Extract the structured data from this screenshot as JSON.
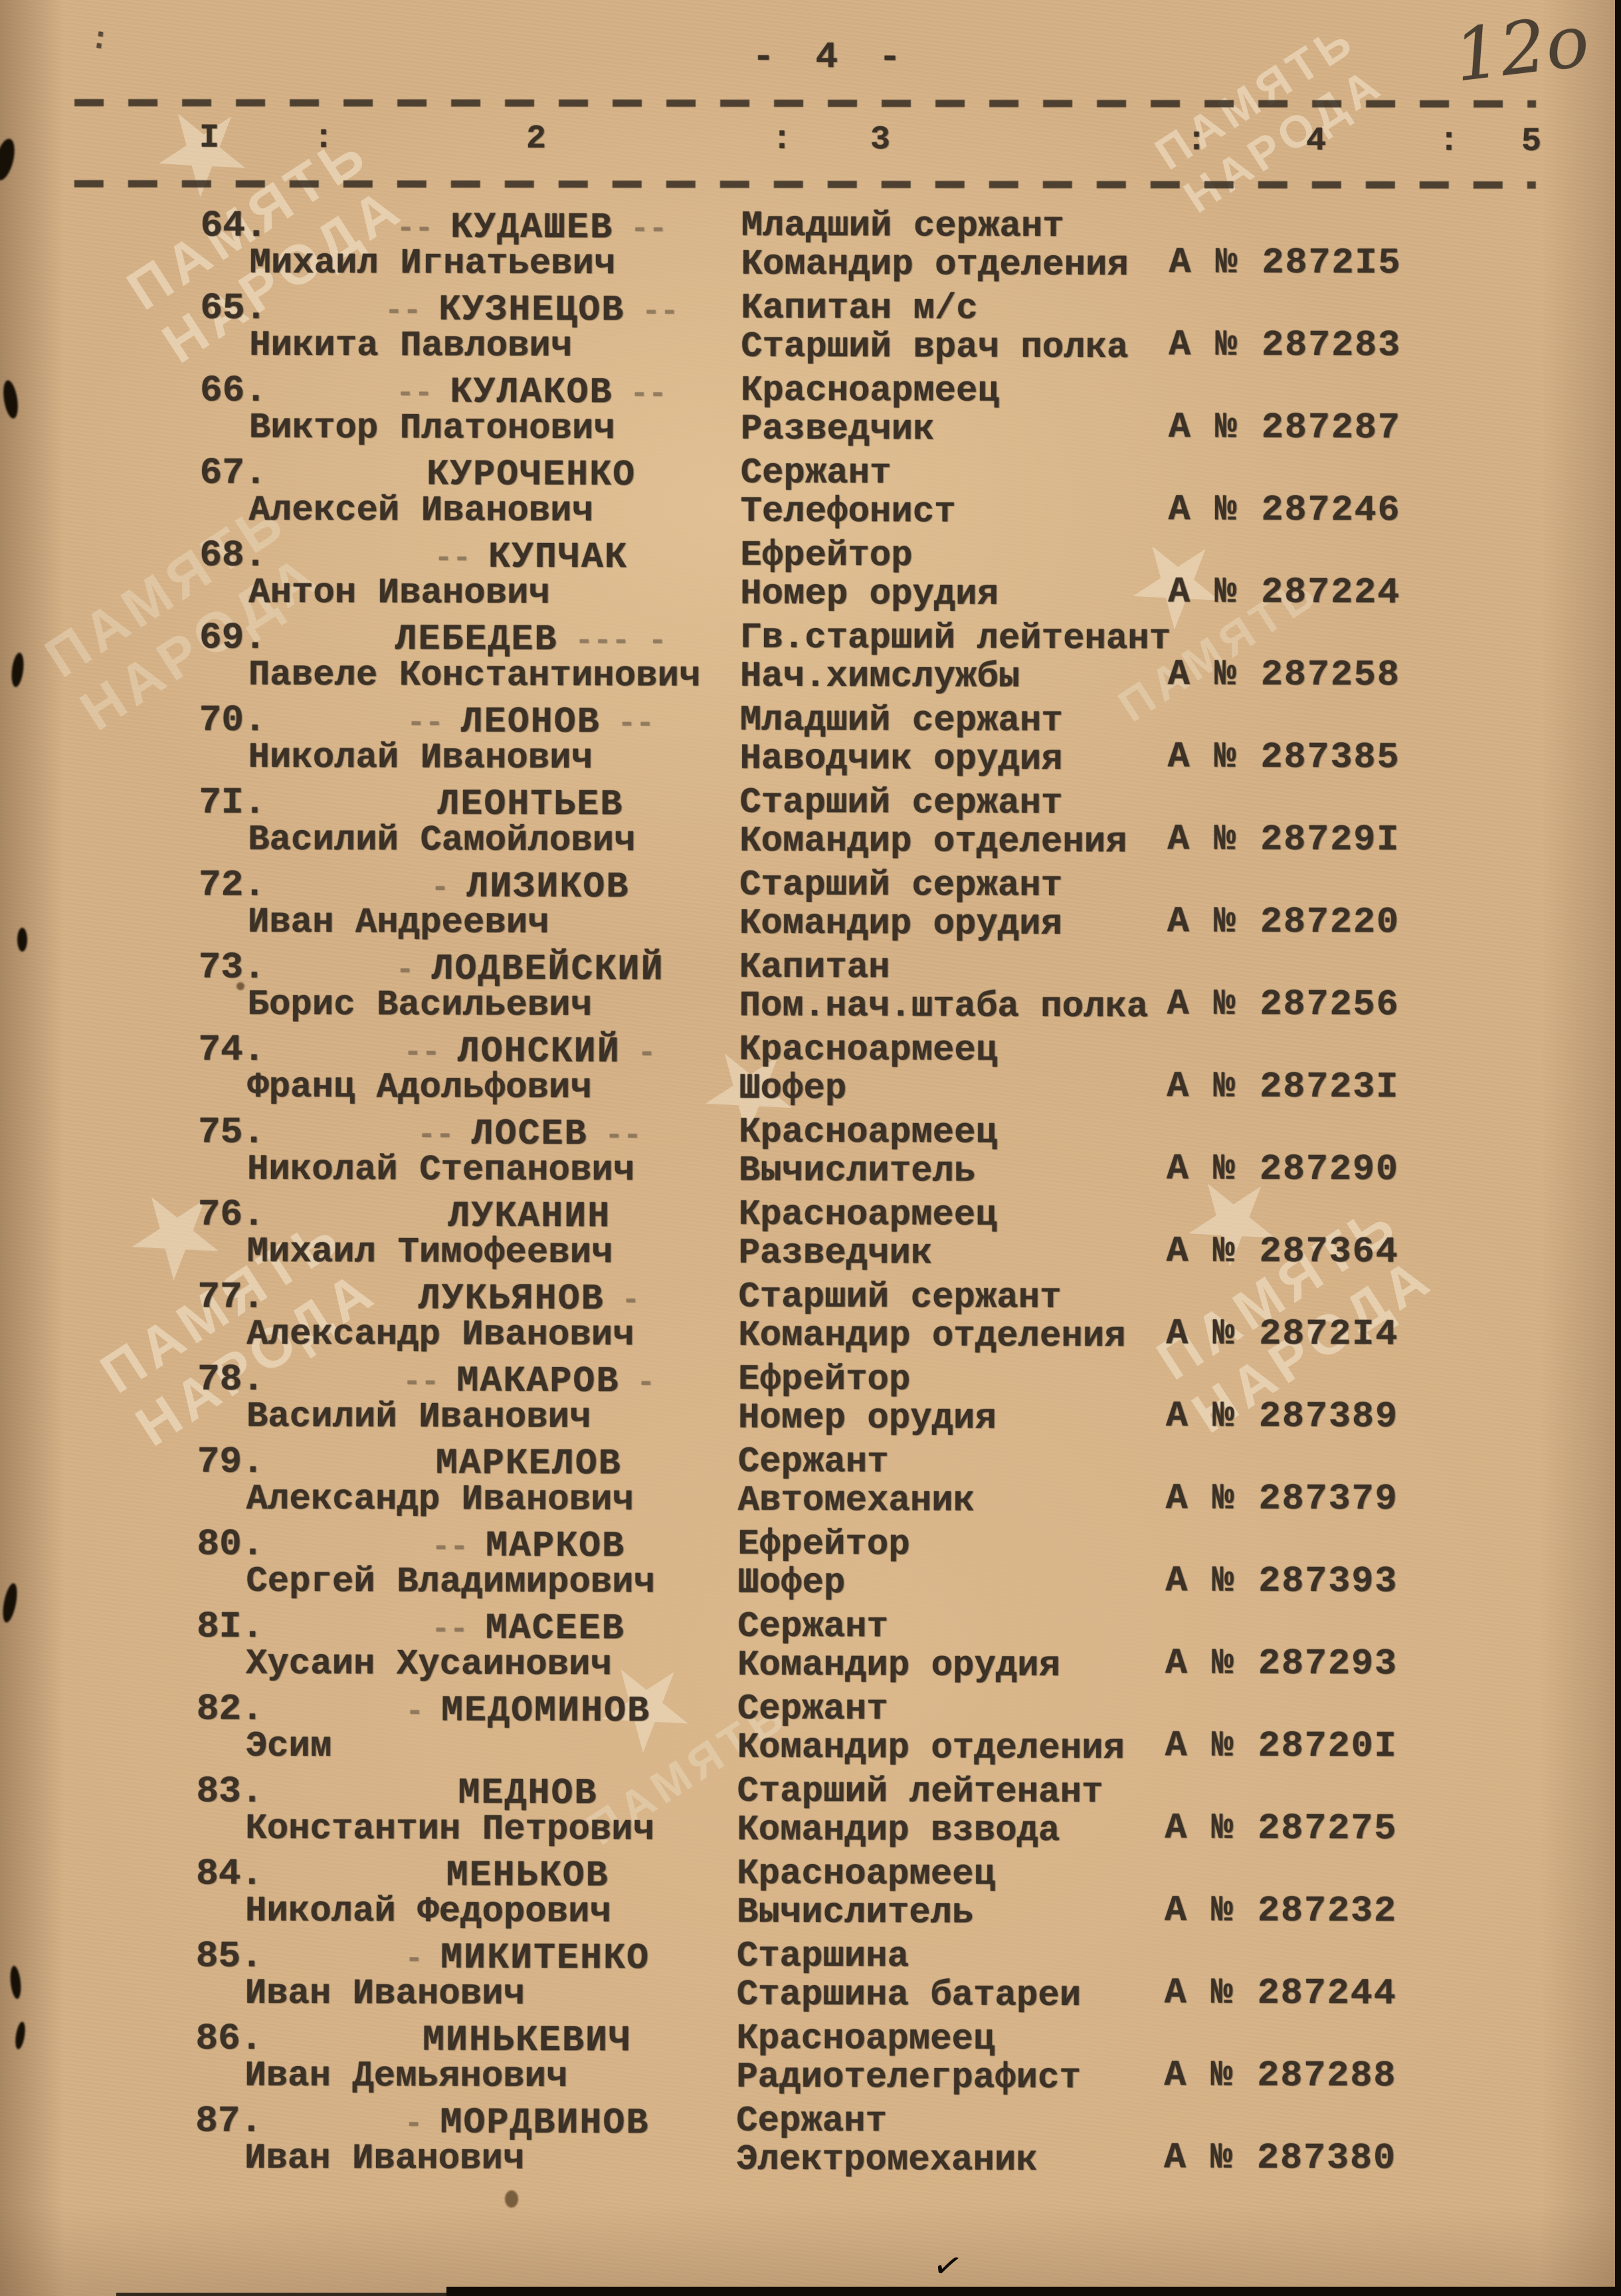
{
  "page": {
    "page_number": "- 4 -",
    "handwritten_number": "12o",
    "top_mark": ":",
    "watermark_line1": "ПАМЯТЬ",
    "watermark_line2": "НАРОДА",
    "watermark_star": "★",
    "bottom_tick": "✓"
  },
  "header": {
    "cells": [
      "I",
      ":",
      "2",
      ":",
      "3",
      ":",
      "4",
      ":",
      "5"
    ]
  },
  "entries": [
    {
      "num": "64.",
      "premark": "--",
      "surname": "КУДАШЕВ",
      "postmark": "--",
      "name": "Михаил Игнатьевич",
      "rank": "Младший сержант",
      "position": "Командир отделения",
      "award": "А № 2872I5"
    },
    {
      "num": "65.",
      "premark": "--",
      "surname": "КУЗНЕЦОВ",
      "postmark": "--",
      "name": "Никита Павлович",
      "rank": "Капитан м/с",
      "position": "Старший врач полка",
      "award": "А № 287283"
    },
    {
      "num": "66.",
      "premark": "--",
      "surname": "КУЛАКОВ",
      "postmark": "--",
      "name": "Виктор Платонович",
      "rank": "Красноармеец",
      "position": "Разведчик",
      "award": "А № 287287"
    },
    {
      "num": "67.",
      "premark": "",
      "surname": "КУРОЧЕНКО",
      "postmark": "",
      "name": "Алексей Иванович",
      "rank": "Сержант",
      "position": "Телефонист",
      "award": "А № 287246"
    },
    {
      "num": "68.",
      "premark": "--",
      "surname": "КУПЧАК",
      "postmark": "",
      "name": "Антон Иванович",
      "rank": "Ефрейтор",
      "position": "Номер орудия",
      "award": "А № 287224"
    },
    {
      "num": "69.",
      "premark": "",
      "surname": "ЛЕБЕДЕВ",
      "postmark": "--- -",
      "name": "Павеле Константинович",
      "rank": "Гв.старший лейтенант",
      "position": "Нач.химслужбы",
      "award": "А № 287258"
    },
    {
      "num": "70.",
      "premark": "--",
      "surname": "ЛЕОНОВ",
      "postmark": "--",
      "name": "Николай Иванович",
      "rank": "Младший сержант",
      "position": "Наводчик орудия",
      "award": "А № 287385"
    },
    {
      "num": "7I.",
      "premark": "",
      "surname": "ЛЕОНТЬЕВ",
      "postmark": "",
      "name": "Василий Самойлович",
      "rank": "Старший сержант",
      "position": "Командир отделения",
      "award": "А № 28729I"
    },
    {
      "num": "72.",
      "premark": "-",
      "surname": "ЛИЗИКОВ",
      "postmark": "",
      "name": "Иван Андреевич",
      "rank": "Старший сержант",
      "position": "Командир орудия",
      "award": "А № 287220"
    },
    {
      "num": "73.",
      "premark": "-",
      "surname": "ЛОДВЕЙСКИЙ",
      "postmark": "",
      "name": "Борис Васильевич",
      "rank": "Капитан",
      "position": "Пом.нач.штаба полка",
      "award": "А № 287256"
    },
    {
      "num": "74.",
      "premark": "--",
      "surname": "ЛОНСКИЙ",
      "postmark": "-",
      "name": "Франц Адольфович",
      "rank": "Красноармеец",
      "position": "Шофер",
      "award": "А № 28723I"
    },
    {
      "num": "75.",
      "premark": "--",
      "surname": "ЛОСЕВ",
      "postmark": "--",
      "name": "Николай Степанович",
      "rank": "Красноармеец",
      "position": "Вычислитель",
      "award": "А № 287290"
    },
    {
      "num": "76.",
      "premark": "",
      "surname": "ЛУКАНИН",
      "postmark": "",
      "name": "Михаил Тимофеевич",
      "rank": "Красноармеец",
      "position": "Разведчик",
      "award": "А № 287364"
    },
    {
      "num": "77.",
      "premark": "",
      "surname": "ЛУКЬЯНОВ",
      "postmark": "-",
      "name": "Александр Иванович",
      "rank": "Старший сержант",
      "position": "Командир отделения",
      "award": "А № 2872I4"
    },
    {
      "num": "78.",
      "premark": "--",
      "surname": "МАКАРОВ",
      "postmark": "-",
      "name": "Василий Иванович",
      "rank": "Ефрейтор",
      "position": "Номер орудия",
      "award": "А № 287389"
    },
    {
      "num": "79.",
      "premark": "",
      "surname": "МАРКЕЛОВ",
      "postmark": "",
      "name": "Александр Иванович",
      "rank": "Сержант",
      "position": "Автомеханик",
      "award": "А № 287379"
    },
    {
      "num": "80.",
      "premark": "--",
      "surname": "МАРКОВ",
      "postmark": "",
      "name": "Сергей Владимирович",
      "rank": "Ефрейтор",
      "position": "Шофер",
      "award": "А № 287393"
    },
    {
      "num": "8I.",
      "premark": "--",
      "surname": "МАСЕЕВ",
      "postmark": "",
      "name": "Хусаин Хусаинович",
      "rank": "Сержант",
      "position": "Командир орудия",
      "award": "А № 287293"
    },
    {
      "num": "82.",
      "premark": "-",
      "surname": "МЕДОМИНОВ",
      "postmark": "",
      "name": "Эсим",
      "rank": "Сержант",
      "position": "Командир отделения",
      "award": "А № 28720I"
    },
    {
      "num": "83.",
      "premark": "",
      "surname": "МЕДНОВ",
      "postmark": "",
      "name": "Константин Петрович",
      "rank": "Старший лейтенант",
      "position": "Командир взвода",
      "award": "А № 287275"
    },
    {
      "num": "84.",
      "premark": "",
      "surname": "МЕНЬКОВ",
      "postmark": "",
      "name": "Николай Федорович",
      "rank": "Красноармеец",
      "position": "Вычислитель",
      "award": "А № 287232"
    },
    {
      "num": "85.",
      "premark": "-",
      "surname": "МИКИТЕНКО",
      "postmark": "",
      "name": "Иван Иванович",
      "rank": "Старшина",
      "position": "Старшина батареи",
      "award": "А № 287244"
    },
    {
      "num": "86.",
      "premark": "",
      "surname": "МИНЬКЕВИЧ",
      "postmark": "",
      "name": "Иван Демьянович",
      "rank": "Красноармеец",
      "position": "Радиотелеграфист",
      "award": "А № 287288"
    },
    {
      "num": "87.",
      "premark": "-",
      "surname": "МОРДВИНОВ",
      "postmark": "",
      "name": "Иван Иванович",
      "rank": "Сержант",
      "position": "Электромеханик",
      "award": "А № 287380"
    }
  ]
}
